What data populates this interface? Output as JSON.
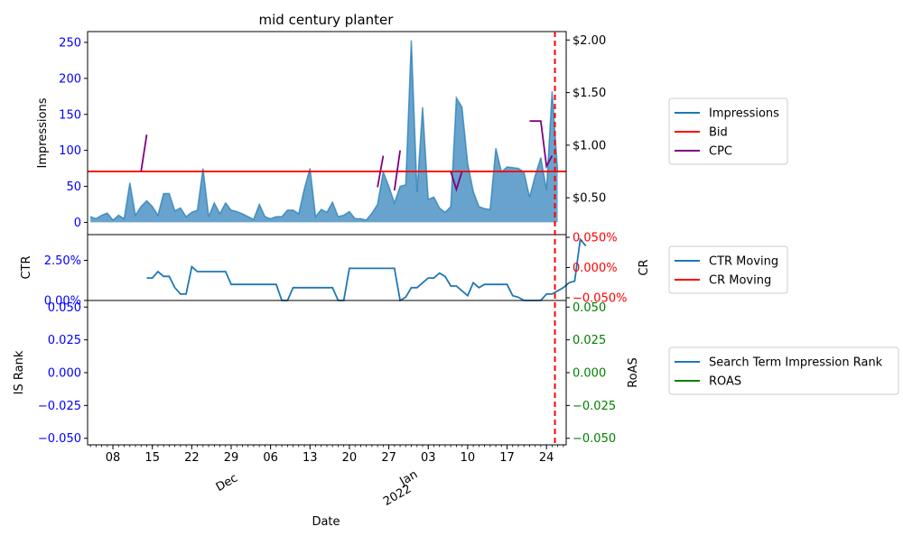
{
  "chart_data": {
    "type": "area",
    "title": "mid century planter",
    "xlabel": "Date",
    "colors": {
      "impressions": "#1f77b4",
      "bid": "#ff0000",
      "cpc": "#800080",
      "ctr": "#1f77b4",
      "cr": "#ff0000",
      "is_rank": "#1f77b4",
      "roas": "#008000",
      "left_ticks": "#0000ff",
      "cr_ticks": "#ff0000",
      "roas_ticks": "#008000",
      "cutoff_line": "#ff0000"
    },
    "x_ticks": {
      "day_labels": [
        "08",
        "15",
        "22",
        "29",
        "06",
        "13",
        "20",
        "27",
        "03",
        "10",
        "17",
        "24"
      ],
      "day_positions": [
        4,
        11,
        18,
        25,
        32,
        39,
        46,
        53,
        60,
        67,
        74,
        81
      ],
      "month_labels": [
        {
          "text": "Dec",
          "pos": 25
        },
        {
          "text": "Jan",
          "pos": 56
        },
        {
          "text": "2022",
          "pos": 56
        }
      ],
      "cutoff_day": 82.5
    },
    "panels": {
      "top": {
        "ylabel": "Impressions",
        "ylim": [
          -17,
          265
        ],
        "yticks": [
          "0",
          "50",
          "100",
          "150",
          "200",
          "250"
        ],
        "right_ylim": [
          0.15,
          2.08
        ],
        "right_yticks": [
          "$0.50",
          "$1.00",
          "$1.50",
          "$2.00"
        ],
        "legend": [
          "Impressions",
          "Bid",
          "CPC"
        ],
        "impressions": [
          8,
          5,
          10,
          13,
          3,
          10,
          5,
          55,
          10,
          22,
          30,
          22,
          10,
          40,
          40,
          16,
          20,
          8,
          14,
          17,
          75,
          8,
          27,
          12,
          27,
          17,
          15,
          12,
          8,
          4,
          25,
          8,
          5,
          8,
          8,
          17,
          17,
          12,
          47,
          75,
          8,
          18,
          14,
          28,
          8,
          10,
          15,
          5,
          5,
          3,
          13,
          25,
          70,
          50,
          27,
          50,
          52,
          253,
          42,
          160,
          32,
          35,
          20,
          14,
          22,
          173,
          160,
          82,
          43,
          22,
          19,
          18,
          103,
          70,
          77,
          76,
          75,
          70,
          35,
          65,
          90,
          45,
          182,
          70
        ],
        "bid_value": 0.75,
        "cpc_segments": [
          {
            "days": [
              9,
              10
            ],
            "values": [
              0.75,
              1.1
            ]
          },
          {
            "days": [
              51,
              52
            ],
            "values": [
              0.6,
              0.9
            ]
          },
          {
            "days": [
              54,
              55
            ],
            "values": [
              0.57,
              0.95
            ]
          },
          {
            "days": [
              64,
              65,
              66
            ],
            "values": [
              0.75,
              0.58,
              0.75
            ]
          },
          {
            "days": [
              78,
              79,
              80,
              81,
              82
            ],
            "values": [
              1.23,
              1.23,
              1.23,
              0.8,
              0.9
            ]
          }
        ]
      },
      "middle": {
        "ylabel": "CTR",
        "right_ylabel": "CR",
        "ylim": [
          0,
          0.041
        ],
        "yticks": [
          "0.00%",
          "2.50%"
        ],
        "right_yticks": [
          "−0.050%",
          "0.000%",
          "0.050%"
        ],
        "legend": [
          "CTR Moving",
          "CR Moving"
        ],
        "ctr_start_day": 10,
        "ctr_moving": [
          0.014,
          0.014,
          0.018,
          0.015,
          0.015,
          0.008,
          0.004,
          0.004,
          0.021,
          0.018,
          0.018,
          0.018,
          0.018,
          0.018,
          0.018,
          0.01,
          0.01,
          0.01,
          0.01,
          0.01,
          0.01,
          0.01,
          0.01,
          0.01,
          0.0,
          0.0,
          0.008,
          0.008,
          0.008,
          0.008,
          0.008,
          0.008,
          0.008,
          0.008,
          0.0,
          0.0,
          0.02,
          0.02,
          0.02,
          0.02,
          0.02,
          0.02,
          0.02,
          0.02,
          0.02,
          0.0,
          0.002,
          0.008,
          0.008,
          0.011,
          0.014,
          0.014,
          0.017,
          0.015,
          0.009,
          0.009,
          0.006,
          0.003,
          0.011,
          0.008,
          0.01,
          0.01,
          0.01,
          0.01,
          0.01,
          0.003,
          0.002,
          0.0,
          0.0,
          0.0,
          0.0,
          0.004,
          0.004,
          0.006,
          0.008,
          0.011,
          0.012,
          0.038,
          0.034
        ]
      },
      "bottom": {
        "ylabel": "IS Rank",
        "right_ylabel": "RoAS",
        "ylim": [
          -0.055,
          0.055
        ],
        "yticks": [
          "−0.050",
          "−0.025",
          "0.000",
          "0.025",
          "0.050"
        ],
        "right_yticks": [
          "−0.050",
          "−0.025",
          "0.000",
          "0.025",
          "0.050"
        ],
        "legend": [
          "Search Term Impression Rank",
          "ROAS"
        ]
      }
    }
  }
}
